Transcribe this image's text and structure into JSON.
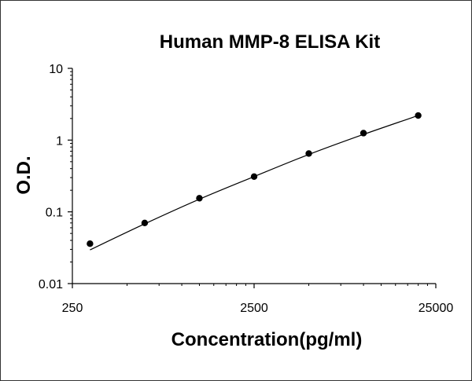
{
  "chart_data": {
    "type": "scatter",
    "title": "Human MMP-8 ELISA Kit",
    "xlabel": "Concentration(pg/ml)",
    "ylabel": "O.D.",
    "x_scale": "log",
    "y_scale": "log",
    "xlim": [
      250,
      25000
    ],
    "ylim": [
      0.01,
      10
    ],
    "x_ticks": [
      "250",
      "2500",
      "25000"
    ],
    "y_ticks": [
      "10",
      "1",
      "0.1",
      "0.01"
    ],
    "grid": false,
    "legend": "none",
    "series": [
      {
        "points": [
          {
            "x": 312.5,
            "y": 0.036
          },
          {
            "x": 625,
            "y": 0.07
          },
          {
            "x": 1250,
            "y": 0.155
          },
          {
            "x": 2500,
            "y": 0.31
          },
          {
            "x": 5000,
            "y": 0.65
          },
          {
            "x": 10000,
            "y": 1.25
          },
          {
            "x": 20000,
            "y": 2.2
          }
        ],
        "fit_curve": [
          {
            "x": 312.5,
            "y": 0.0295
          },
          {
            "x": 625,
            "y": 0.068
          },
          {
            "x": 1250,
            "y": 0.15
          },
          {
            "x": 2500,
            "y": 0.31
          },
          {
            "x": 5000,
            "y": 0.63
          },
          {
            "x": 10000,
            "y": 1.2
          },
          {
            "x": 20000,
            "y": 2.2
          }
        ]
      }
    ],
    "colors": {
      "marker": "#000000",
      "line": "#000000",
      "axis": "#000000"
    }
  }
}
